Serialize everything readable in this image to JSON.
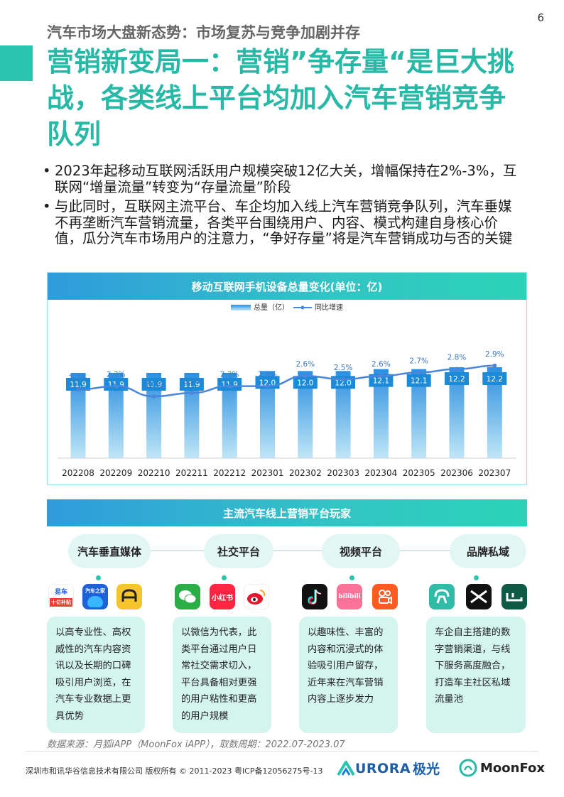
{
  "page": {
    "number": "6",
    "kicker": "汽车市场大盘新态势：市场复苏与竞争加剧并存",
    "title": "营销新变局一：营销”争存量“是巨大挑战，各类线上平台均加入汽车营销竞争队列"
  },
  "bullets": [
    "2023年起移动互联网活跃用户规模突破12亿大关，增幅保持在2%-3%，互联网“增量流量”转变为“存量流量”阶段",
    "与此同时，互联网主流平台、车企均加入线上汽车营销竞争队列，汽车垂媒不再垄断汽车营销流量，各类平台围绕用户、内容、模式构建自身核心价值，瓜分汽车市场用户的注意力，“争好存量”将是汽车营销成功与否的关键"
  ],
  "chart_data": {
    "type": "bar",
    "title": "移动互联网手机设备总量变化(单位：亿)",
    "legend_position": "top-center",
    "categories": [
      "202208",
      "202209",
      "202210",
      "202211",
      "202212",
      "202301",
      "202302",
      "202303",
      "202304",
      "202305",
      "202306",
      "202307"
    ],
    "series": [
      {
        "name": "总量（亿）",
        "type": "bar",
        "values": [
          11.9,
          11.9,
          11.9,
          11.9,
          11.9,
          12.0,
          12.0,
          12.0,
          12.1,
          12.1,
          12.2,
          12.2
        ]
      },
      {
        "name": "同比增速",
        "type": "line",
        "values": [
          "2.2%",
          "2.3%",
          "2.0%",
          "2.1%",
          "2.3%",
          "2.3%",
          "2.6%",
          "2.5%",
          "2.6%",
          "2.7%",
          "2.8%",
          "2.9%"
        ]
      }
    ],
    "colors": {
      "bar_top": "#2b8fe0",
      "bar_bottom": "#bfe6f7",
      "line": "#4a86dc",
      "label_bg": "#1b8ad8"
    }
  },
  "players": {
    "title": "主流汽车线上营销平台玩家",
    "categories": [
      {
        "label": "汽车垂直媒体",
        "icons": [
          {
            "name": "yiche-icon",
            "text": "易车",
            "subtext": "十亿补贴"
          },
          {
            "name": "autohome-icon",
            "text": "汽车之家"
          },
          {
            "name": "dongchedi-icon",
            "text": ""
          }
        ],
        "description": "以高专业性、高权威性的汽车内容资讯以及长期的口碑吸引用户浏览，在汽车专业数据上更具优势"
      },
      {
        "label": "社交平台",
        "icons": [
          {
            "name": "wechat-icon",
            "text": ""
          },
          {
            "name": "xiaohongshu-icon",
            "text": "小红书"
          },
          {
            "name": "weibo-icon",
            "text": ""
          }
        ],
        "description": "以微信为代表，此类平台通过用户日常社交需求切入，平台具备相对更强的用户粘性和更高的用户规模"
      },
      {
        "label": "视频平台",
        "icons": [
          {
            "name": "douyin-icon",
            "text": ""
          },
          {
            "name": "bilibili-icon",
            "text": "bilibili"
          },
          {
            "name": "kuaishou-icon",
            "text": ""
          }
        ],
        "description": "以趣味性、丰富的内容和沉浸式的体验吸引用户留存，近年来在汽车营销内容上逐步发力"
      },
      {
        "label": "品牌私域",
        "icons": [
          {
            "name": "nio-icon",
            "text": ""
          },
          {
            "name": "xpeng-icon",
            "text": ""
          },
          {
            "name": "lixiang-icon",
            "text": ""
          }
        ],
        "description": "车企自主搭建的数字营销渠道，与线下服务高度融合，打造车主社区私域流量池"
      }
    ]
  },
  "source": "数据来源：月狐iAPP（MoonFox iAPP），取数周期：2022.07-2023.07",
  "footer": {
    "copyright": "深圳市和讯华谷信息技术有限公司 版权所有 © 2011-2023 粤ICP备12056275号-13",
    "logo_aurora": "URORA",
    "logo_aurora_cn": "极光",
    "logo_moonfox": "MoonFox"
  }
}
